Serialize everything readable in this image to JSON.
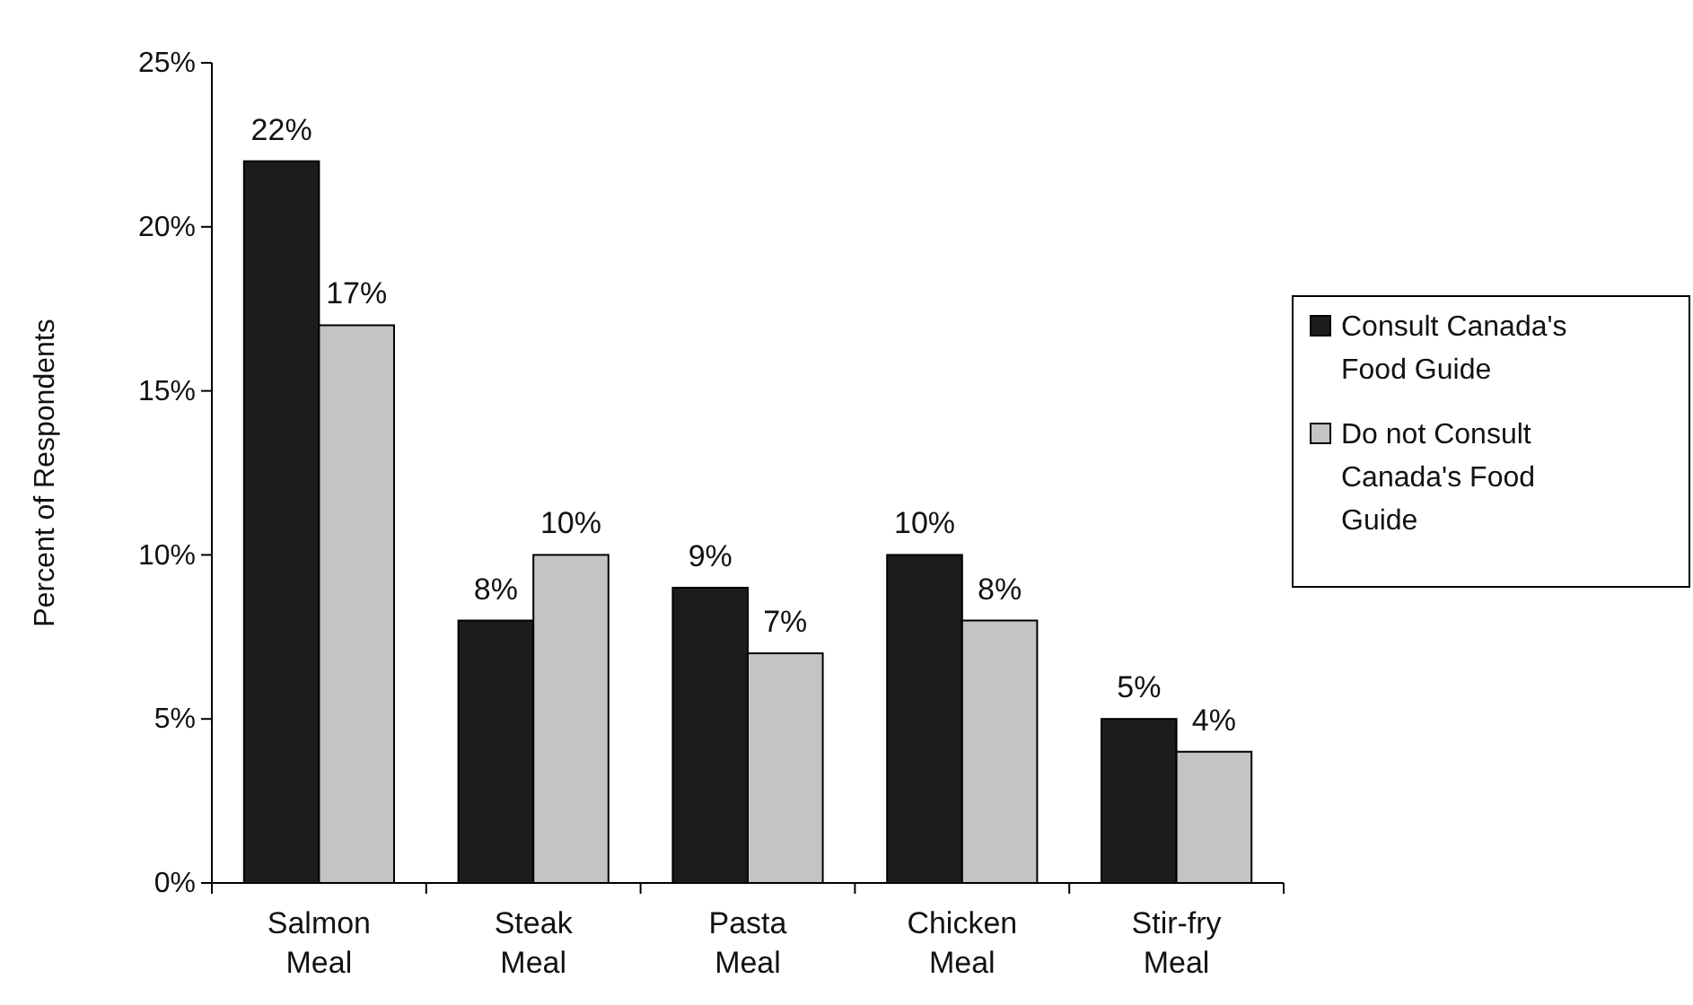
{
  "chart_data": {
    "type": "bar",
    "ylabel": "Percent of Respondents",
    "categories": [
      "Salmon Meal",
      "Steak Meal",
      "Pasta Meal",
      "Chicken Meal",
      "Stir-fry Meal"
    ],
    "series": [
      {
        "name": "Consult Canada's Food Guide",
        "color": "#1c1c1c",
        "values": [
          22,
          8,
          9,
          10,
          5
        ],
        "value_labels": [
          "22%",
          "8%",
          "9%",
          "10%",
          "5%"
        ]
      },
      {
        "name": "Do not Consult Canada's Food Guide",
        "color": "#c4c4c4",
        "values": [
          17,
          10,
          7,
          8,
          4
        ],
        "value_labels": [
          "17%",
          "10%",
          "7%",
          "8%",
          "4%"
        ]
      }
    ],
    "ylim": [
      0,
      25
    ],
    "yticks": [
      {
        "value": 0,
        "label": "0%"
      },
      {
        "value": 5,
        "label": "5%"
      },
      {
        "value": 10,
        "label": "10%"
      },
      {
        "value": 15,
        "label": "15%"
      },
      {
        "value": 20,
        "label": "20%"
      },
      {
        "value": 25,
        "label": "25%"
      }
    ],
    "grid": false,
    "legend": "right"
  }
}
